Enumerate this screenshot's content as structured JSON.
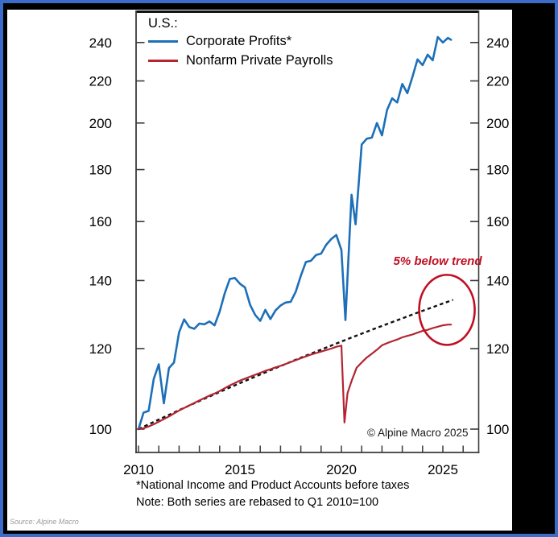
{
  "frame": {
    "border_color": "#3b6cc7",
    "background": "#000000",
    "panel_background": "#ffffff"
  },
  "legend": {
    "title": "U.S.:",
    "items": [
      {
        "label": "Corporate Profits*",
        "color": "#1c6fb8"
      },
      {
        "label": "Nonfarm Private Payrolls",
        "color": "#b22531"
      }
    ]
  },
  "annotation": {
    "text": "5% below trend",
    "color": "#c00f22"
  },
  "copyright": "© Alpine Macro 2025",
  "footnotes": {
    "line1": "*National Income and Product Accounts before taxes",
    "line2": "Note: Both series are rebased to Q1 2010=100"
  },
  "source": "Source: Alpine Macro",
  "chart_data": {
    "type": "line",
    "title": "U.S.: Corporate Profits vs Nonfarm Private Payrolls",
    "y_scale": "log",
    "xlim": [
      2009.9,
      2026.8
    ],
    "ylim": [
      95,
      257
    ],
    "y_ticks": [
      100,
      120,
      140,
      160,
      180,
      200,
      220,
      240
    ],
    "x_ticks_labeled": [
      2010,
      2015,
      2020,
      2025
    ],
    "x_ticks_minor": [
      2010,
      2011,
      2012,
      2013,
      2014,
      2015,
      2016,
      2017,
      2018,
      2019,
      2020,
      2021,
      2022,
      2023,
      2024,
      2025,
      2026
    ],
    "grid": false,
    "legend_position": "top-left inside",
    "series": [
      {
        "name": "Corporate Profits",
        "color": "#1c6fb8",
        "width": 2.6,
        "points": [
          [
            2010.0,
            100.0
          ],
          [
            2010.25,
            103.8
          ],
          [
            2010.5,
            104.2
          ],
          [
            2010.75,
            112.0
          ],
          [
            2011.0,
            115.8
          ],
          [
            2011.25,
            106.0
          ],
          [
            2011.5,
            114.8
          ],
          [
            2011.75,
            116.3
          ],
          [
            2012.0,
            124.5
          ],
          [
            2012.25,
            128.2
          ],
          [
            2012.5,
            126.0
          ],
          [
            2012.75,
            125.5
          ],
          [
            2013.0,
            127.0
          ],
          [
            2013.25,
            126.8
          ],
          [
            2013.5,
            127.6
          ],
          [
            2013.75,
            126.5
          ],
          [
            2014.0,
            130.5
          ],
          [
            2014.25,
            136.0
          ],
          [
            2014.5,
            140.5
          ],
          [
            2014.75,
            140.8
          ],
          [
            2015.0,
            139.0
          ],
          [
            2015.25,
            137.8
          ],
          [
            2015.5,
            132.5
          ],
          [
            2015.75,
            129.5
          ],
          [
            2016.0,
            127.8
          ],
          [
            2016.25,
            131.0
          ],
          [
            2016.5,
            128.3
          ],
          [
            2016.75,
            130.8
          ],
          [
            2017.0,
            132.3
          ],
          [
            2017.25,
            133.2
          ],
          [
            2017.5,
            133.4
          ],
          [
            2017.75,
            136.5
          ],
          [
            2018.0,
            141.5
          ],
          [
            2018.25,
            146.0
          ],
          [
            2018.5,
            146.4
          ],
          [
            2018.75,
            148.3
          ],
          [
            2019.0,
            148.8
          ],
          [
            2019.25,
            151.8
          ],
          [
            2019.5,
            153.8
          ],
          [
            2019.75,
            155.2
          ],
          [
            2020.0,
            150.0
          ],
          [
            2020.2,
            128.0
          ],
          [
            2020.5,
            170.0
          ],
          [
            2020.7,
            159.0
          ],
          [
            2021.0,
            190.5
          ],
          [
            2021.25,
            193.0
          ],
          [
            2021.5,
            193.5
          ],
          [
            2021.75,
            200.0
          ],
          [
            2022.0,
            194.5
          ],
          [
            2022.25,
            206.0
          ],
          [
            2022.5,
            211.5
          ],
          [
            2022.75,
            209.5
          ],
          [
            2023.0,
            218.5
          ],
          [
            2023.25,
            214.0
          ],
          [
            2023.5,
            222.0
          ],
          [
            2023.75,
            231.0
          ],
          [
            2024.0,
            228.0
          ],
          [
            2024.25,
            233.5
          ],
          [
            2024.5,
            230.5
          ],
          [
            2024.75,
            243.0
          ],
          [
            2025.0,
            240.0
          ],
          [
            2025.25,
            242.5
          ],
          [
            2025.4,
            241.5
          ]
        ]
      },
      {
        "name": "Nonfarm Private Payrolls",
        "color": "#b22531",
        "width": 2.2,
        "points": [
          [
            2010.0,
            100.0
          ],
          [
            2010.25,
            100.2
          ],
          [
            2010.5,
            100.6
          ],
          [
            2010.75,
            101.1
          ],
          [
            2011.0,
            101.7
          ],
          [
            2011.25,
            102.3
          ],
          [
            2011.5,
            102.9
          ],
          [
            2011.75,
            103.6
          ],
          [
            2012.0,
            104.3
          ],
          [
            2012.25,
            104.9
          ],
          [
            2012.5,
            105.5
          ],
          [
            2012.75,
            106.1
          ],
          [
            2013.0,
            106.7
          ],
          [
            2013.25,
            107.3
          ],
          [
            2013.5,
            107.9
          ],
          [
            2013.75,
            108.4
          ],
          [
            2014.0,
            109.0
          ],
          [
            2014.25,
            109.7
          ],
          [
            2014.5,
            110.4
          ],
          [
            2014.75,
            111.0
          ],
          [
            2015.0,
            111.6
          ],
          [
            2015.25,
            112.1
          ],
          [
            2015.5,
            112.6
          ],
          [
            2015.75,
            113.1
          ],
          [
            2016.0,
            113.6
          ],
          [
            2016.25,
            114.1
          ],
          [
            2016.5,
            114.5
          ],
          [
            2016.75,
            115.0
          ],
          [
            2017.0,
            115.4
          ],
          [
            2017.25,
            115.9
          ],
          [
            2017.5,
            116.4
          ],
          [
            2017.75,
            116.9
          ],
          [
            2018.0,
            117.4
          ],
          [
            2018.25,
            117.9
          ],
          [
            2018.5,
            118.4
          ],
          [
            2018.75,
            118.8
          ],
          [
            2019.0,
            119.2
          ],
          [
            2019.25,
            119.6
          ],
          [
            2019.5,
            120.0
          ],
          [
            2019.75,
            120.5
          ],
          [
            2020.0,
            120.8
          ],
          [
            2020.15,
            101.5
          ],
          [
            2020.3,
            108.5
          ],
          [
            2020.5,
            111.5
          ],
          [
            2020.75,
            114.9
          ],
          [
            2021.0,
            116.3
          ],
          [
            2021.25,
            117.6
          ],
          [
            2021.5,
            118.6
          ],
          [
            2021.75,
            119.7
          ],
          [
            2022.0,
            120.9
          ],
          [
            2022.25,
            121.5
          ],
          [
            2022.5,
            122.0
          ],
          [
            2022.75,
            122.5
          ],
          [
            2023.0,
            123.1
          ],
          [
            2023.25,
            123.5
          ],
          [
            2023.5,
            123.9
          ],
          [
            2023.75,
            124.4
          ],
          [
            2024.0,
            124.9
          ],
          [
            2024.25,
            125.2
          ],
          [
            2024.5,
            125.7
          ],
          [
            2024.75,
            126.1
          ],
          [
            2025.0,
            126.5
          ],
          [
            2025.25,
            126.7
          ],
          [
            2025.4,
            126.7
          ]
        ]
      }
    ],
    "trend": {
      "name": "trend line (dashed, linear trend of payrolls)",
      "style": "dashed",
      "color": "#111111",
      "start": [
        2010,
        100
      ],
      "end": [
        2025.5,
        134
      ]
    },
    "ellipse_annotation": {
      "label": "5% below trend",
      "center": [
        2025.2,
        131
      ]
    }
  }
}
